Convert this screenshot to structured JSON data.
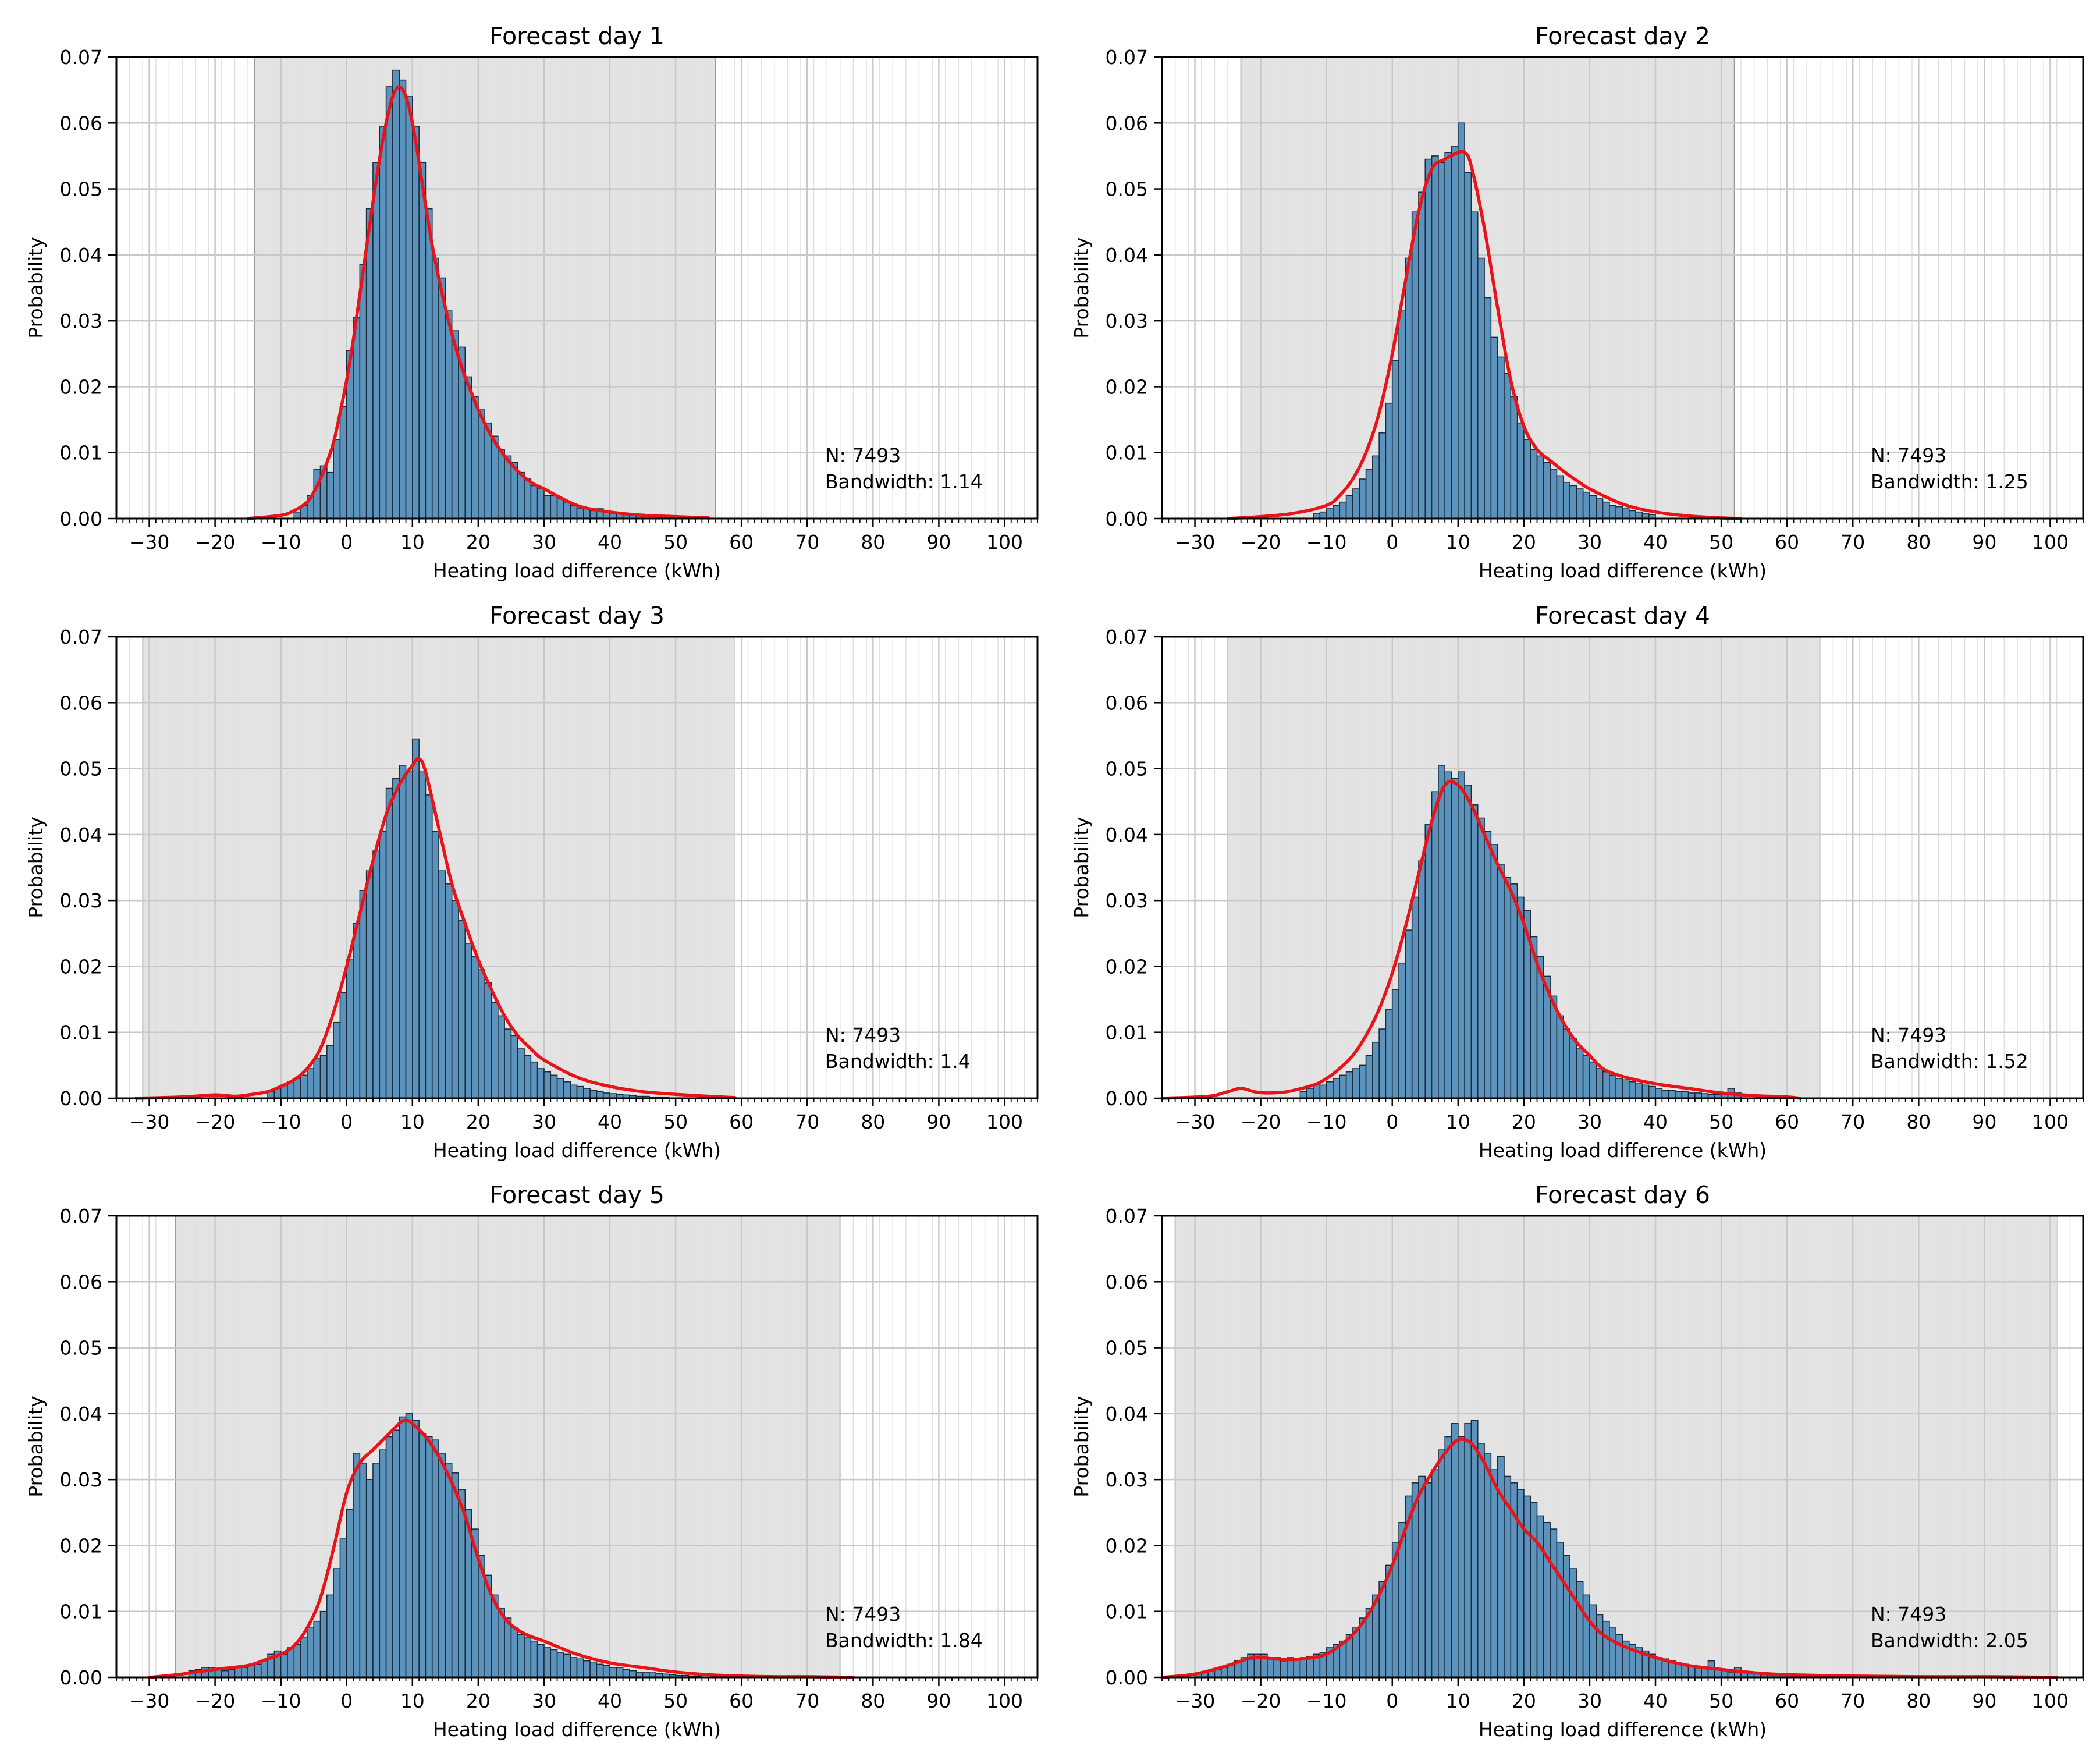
{
  "figure": {
    "xlabel": "Heating load difference (kWh)",
    "ylabel": "Probability",
    "n_label": "N: 7493",
    "bandwidth_prefix": "Bandwidth: "
  },
  "colors": {
    "bar_fill": "#5b93bd",
    "bar_edge": "#1c2a3a",
    "kde": "#e8141a",
    "shade": "#e3e3e3",
    "grid": "#c8c8c8"
  },
  "chart_data": [
    {
      "type": "bar",
      "title": "Forecast day 1",
      "xlabel": "Heating load difference (kWh)",
      "ylabel": "Probability",
      "xlim": [
        -35,
        105
      ],
      "ylim": [
        0,
        0.07
      ],
      "x_ticks": [
        -30,
        -20,
        -10,
        0,
        10,
        20,
        30,
        40,
        50,
        60,
        70,
        80,
        90,
        100
      ],
      "y_ticks": [
        0.0,
        0.01,
        0.02,
        0.03,
        0.04,
        0.05,
        0.06,
        0.07
      ],
      "shaded_range": [
        -14,
        56
      ],
      "n": 7493,
      "bandwidth": "1.14",
      "bins": {
        "start": -8.0,
        "width": 1.0,
        "values": [
          0.001,
          0.002,
          0.0035,
          0.0075,
          0.008,
          0.007,
          0.012,
          0.017,
          0.0255,
          0.0305,
          0.0385,
          0.047,
          0.054,
          0.0595,
          0.0655,
          0.068,
          0.0665,
          0.064,
          0.0595,
          0.054,
          0.047,
          0.0395,
          0.0365,
          0.0315,
          0.0285,
          0.026,
          0.0215,
          0.0185,
          0.0165,
          0.0145,
          0.0125,
          0.0105,
          0.0095,
          0.0085,
          0.007,
          0.006,
          0.005,
          0.0045,
          0.0035,
          0.0035,
          0.003,
          0.0025,
          0.002,
          0.0015,
          0.0015,
          0.0012,
          0.0015,
          0.001,
          0.0008,
          0.0007,
          0.0006,
          0.0005,
          0.0005,
          0.0004,
          0.0003,
          0.0003,
          0.0002,
          0.0002
        ]
      },
      "kde": {
        "x": [
          -15,
          -10,
          -8,
          -6,
          -5,
          -4,
          -3,
          -2,
          -1,
          0,
          1,
          2,
          3,
          4,
          5,
          6,
          7,
          8,
          9,
          10,
          11,
          12,
          13,
          14,
          15,
          16,
          17,
          18,
          19,
          20,
          22,
          24,
          26,
          28,
          30,
          35,
          40,
          45,
          50,
          55
        ],
        "y": [
          0.0,
          0.0005,
          0.0012,
          0.0025,
          0.004,
          0.006,
          0.0085,
          0.0115,
          0.016,
          0.021,
          0.027,
          0.034,
          0.041,
          0.048,
          0.0545,
          0.06,
          0.064,
          0.0655,
          0.064,
          0.06,
          0.054,
          0.0475,
          0.0415,
          0.0365,
          0.032,
          0.028,
          0.0245,
          0.0215,
          0.019,
          0.0165,
          0.0125,
          0.0095,
          0.0072,
          0.0055,
          0.0045,
          0.002,
          0.001,
          0.0005,
          0.0003,
          0.0001
        ]
      }
    },
    {
      "type": "bar",
      "title": "Forecast day 2",
      "xlabel": "Heating load difference (kWh)",
      "ylabel": "Probability",
      "xlim": [
        -35,
        105
      ],
      "ylim": [
        0,
        0.07
      ],
      "x_ticks": [
        -30,
        -20,
        -10,
        0,
        10,
        20,
        30,
        40,
        50,
        60,
        70,
        80,
        90,
        100
      ],
      "y_ticks": [
        0.0,
        0.01,
        0.02,
        0.03,
        0.04,
        0.05,
        0.06,
        0.07
      ],
      "shaded_range": [
        -23,
        52
      ],
      "n": 7493,
      "bandwidth": "1.25",
      "bins": {
        "start": -12.0,
        "width": 1.0,
        "values": [
          0.0008,
          0.001,
          0.0015,
          0.002,
          0.0025,
          0.0035,
          0.0045,
          0.006,
          0.0075,
          0.0095,
          0.013,
          0.0175,
          0.024,
          0.0315,
          0.0395,
          0.0465,
          0.0495,
          0.0545,
          0.055,
          0.054,
          0.0555,
          0.0565,
          0.06,
          0.0525,
          0.0465,
          0.0395,
          0.0335,
          0.0275,
          0.0245,
          0.022,
          0.0185,
          0.0145,
          0.012,
          0.0105,
          0.0095,
          0.0085,
          0.0075,
          0.0065,
          0.0055,
          0.005,
          0.0045,
          0.004,
          0.0035,
          0.003,
          0.0025,
          0.002,
          0.0018,
          0.0015,
          0.0012,
          0.001,
          0.0008,
          0.0006
        ]
      },
      "kde": {
        "x": [
          -25,
          -20,
          -15,
          -10,
          -8,
          -6,
          -4,
          -2,
          0,
          2,
          4,
          6,
          8,
          10,
          11,
          12,
          14,
          16,
          18,
          20,
          22,
          24,
          26,
          28,
          30,
          35,
          40,
          45,
          50,
          53
        ],
        "y": [
          0.0,
          0.0003,
          0.0008,
          0.002,
          0.0035,
          0.006,
          0.01,
          0.016,
          0.025,
          0.036,
          0.0465,
          0.053,
          0.0545,
          0.0555,
          0.0555,
          0.0535,
          0.044,
          0.032,
          0.021,
          0.014,
          0.0105,
          0.0088,
          0.0072,
          0.0058,
          0.0045,
          0.0022,
          0.001,
          0.0004,
          0.0001,
          0.0
        ]
      }
    },
    {
      "type": "bar",
      "title": "Forecast day 3",
      "xlabel": "Heating load difference (kWh)",
      "ylabel": "Probability",
      "xlim": [
        -35,
        105
      ],
      "ylim": [
        0,
        0.07
      ],
      "x_ticks": [
        -30,
        -20,
        -10,
        0,
        10,
        20,
        30,
        40,
        50,
        60,
        70,
        80,
        90,
        100
      ],
      "y_ticks": [
        0.0,
        0.01,
        0.02,
        0.03,
        0.04,
        0.05,
        0.06,
        0.07
      ],
      "shaded_range": [
        -31,
        59
      ],
      "n": 7493,
      "bandwidth": "1.4",
      "bins": {
        "start": -12.0,
        "width": 1.0,
        "values": [
          0.001,
          0.0015,
          0.002,
          0.0025,
          0.003,
          0.0035,
          0.0045,
          0.006,
          0.0065,
          0.008,
          0.0115,
          0.016,
          0.021,
          0.0265,
          0.0315,
          0.0345,
          0.0375,
          0.0405,
          0.047,
          0.0485,
          0.0505,
          0.0495,
          0.0545,
          0.0495,
          0.046,
          0.0405,
          0.0345,
          0.0325,
          0.03,
          0.027,
          0.0235,
          0.0215,
          0.0195,
          0.0175,
          0.0145,
          0.0125,
          0.0105,
          0.0095,
          0.0075,
          0.0065,
          0.0055,
          0.0045,
          0.004,
          0.0035,
          0.003,
          0.0025,
          0.002,
          0.0018,
          0.0015,
          0.0012,
          0.001,
          0.0008,
          0.0007,
          0.0006,
          0.0005,
          0.0004,
          0.0003,
          0.0003,
          0.0002,
          0.0002,
          0.0002
        ]
      },
      "kde": {
        "x": [
          -32,
          -25,
          -20,
          -17,
          -15,
          -12,
          -10,
          -8,
          -6,
          -4,
          -2,
          0,
          2,
          4,
          6,
          8,
          10,
          11,
          12,
          14,
          16,
          18,
          20,
          22,
          24,
          26,
          28,
          30,
          35,
          40,
          45,
          50,
          55,
          59
        ],
        "y": [
          0.0,
          0.0002,
          0.0005,
          0.0003,
          0.0005,
          0.001,
          0.0018,
          0.0028,
          0.0045,
          0.0075,
          0.013,
          0.02,
          0.028,
          0.036,
          0.043,
          0.0475,
          0.0505,
          0.0515,
          0.0495,
          0.041,
          0.0325,
          0.0265,
          0.021,
          0.0165,
          0.0125,
          0.0095,
          0.0075,
          0.0058,
          0.0032,
          0.0018,
          0.001,
          0.0006,
          0.0003,
          0.0001
        ]
      }
    },
    {
      "type": "bar",
      "title": "Forecast day 4",
      "xlabel": "Heating load difference (kWh)",
      "ylabel": "Probability",
      "xlim": [
        -35,
        105
      ],
      "ylim": [
        0,
        0.07
      ],
      "x_ticks": [
        -30,
        -20,
        -10,
        0,
        10,
        20,
        30,
        40,
        50,
        60,
        70,
        80,
        90,
        100
      ],
      "y_ticks": [
        0.0,
        0.01,
        0.02,
        0.03,
        0.04,
        0.05,
        0.06,
        0.07
      ],
      "shaded_range": [
        -25,
        65
      ],
      "n": 7493,
      "bandwidth": "1.52",
      "bins": {
        "start": -14.0,
        "width": 1.0,
        "values": [
          0.001,
          0.0015,
          0.002,
          0.002,
          0.0025,
          0.003,
          0.0035,
          0.004,
          0.0045,
          0.005,
          0.0065,
          0.0085,
          0.0105,
          0.0135,
          0.0165,
          0.0205,
          0.0255,
          0.0305,
          0.036,
          0.0415,
          0.0465,
          0.0505,
          0.0495,
          0.0485,
          0.0495,
          0.0475,
          0.0445,
          0.0425,
          0.0405,
          0.0385,
          0.0355,
          0.0335,
          0.0325,
          0.0305,
          0.0285,
          0.0245,
          0.0215,
          0.0185,
          0.0155,
          0.0125,
          0.0105,
          0.009,
          0.0075,
          0.0065,
          0.0055,
          0.0045,
          0.004,
          0.0035,
          0.003,
          0.0028,
          0.0025,
          0.0022,
          0.002,
          0.0018,
          0.0015,
          0.0012,
          0.0012,
          0.001,
          0.001,
          0.0008,
          0.0008,
          0.0007,
          0.0006,
          0.0006,
          0.0008,
          0.0015,
          0.0008
        ]
      },
      "kde": {
        "x": [
          -35,
          -28,
          -25,
          -23,
          -21,
          -19,
          -16,
          -12,
          -10,
          -8,
          -6,
          -4,
          -2,
          0,
          2,
          4,
          6,
          8,
          10,
          12,
          14,
          16,
          18,
          20,
          22,
          24,
          26,
          28,
          30,
          32,
          35,
          40,
          45,
          50,
          55,
          60,
          62
        ],
        "y": [
          0.0,
          0.0003,
          0.001,
          0.0015,
          0.001,
          0.0008,
          0.001,
          0.002,
          0.003,
          0.0045,
          0.0065,
          0.0095,
          0.0135,
          0.019,
          0.026,
          0.034,
          0.042,
          0.0475,
          0.0475,
          0.0445,
          0.04,
          0.0355,
          0.0315,
          0.0265,
          0.0205,
          0.0155,
          0.0115,
          0.0085,
          0.0065,
          0.0045,
          0.0033,
          0.0022,
          0.0015,
          0.0008,
          0.0004,
          0.0002,
          0.0
        ]
      }
    },
    {
      "type": "bar",
      "title": "Forecast day 5",
      "xlabel": "Heating load difference (kWh)",
      "ylabel": "Probability",
      "xlim": [
        -35,
        105
      ],
      "ylim": [
        0,
        0.07
      ],
      "x_ticks": [
        -30,
        -20,
        -10,
        0,
        10,
        20,
        30,
        40,
        50,
        60,
        70,
        80,
        90,
        100
      ],
      "y_ticks": [
        0.0,
        0.01,
        0.02,
        0.03,
        0.04,
        0.05,
        0.06,
        0.07
      ],
      "shaded_range": [
        -26,
        75
      ],
      "n": 7493,
      "bandwidth": "1.84",
      "bins": {
        "start": -24.0,
        "width": 1.0,
        "values": [
          0.001,
          0.0012,
          0.0015,
          0.0015,
          0.0012,
          0.001,
          0.0012,
          0.0015,
          0.0015,
          0.0018,
          0.002,
          0.0025,
          0.0035,
          0.004,
          0.0035,
          0.0045,
          0.005,
          0.006,
          0.0075,
          0.0085,
          0.01,
          0.0125,
          0.0165,
          0.021,
          0.0255,
          0.034,
          0.0325,
          0.03,
          0.0325,
          0.0345,
          0.0365,
          0.0375,
          0.0395,
          0.04,
          0.039,
          0.037,
          0.0365,
          0.036,
          0.034,
          0.0325,
          0.031,
          0.0285,
          0.0255,
          0.0225,
          0.0185,
          0.0155,
          0.0125,
          0.0105,
          0.009,
          0.0075,
          0.0065,
          0.006,
          0.0055,
          0.005,
          0.0045,
          0.0042,
          0.0038,
          0.0035,
          0.003,
          0.0028,
          0.0025,
          0.0022,
          0.002,
          0.0018,
          0.0015,
          0.0015,
          0.0012,
          0.001,
          0.0008,
          0.0008,
          0.0007,
          0.0006,
          0.0005,
          0.0004,
          0.0003,
          0.0003,
          0.0002,
          0.0002
        ]
      },
      "kde": {
        "x": [
          -30,
          -25,
          -20,
          -15,
          -12,
          -10,
          -8,
          -6,
          -4,
          -2,
          0,
          2,
          4,
          6,
          8,
          9,
          10,
          12,
          14,
          16,
          18,
          20,
          22,
          24,
          26,
          28,
          30,
          35,
          40,
          45,
          50,
          55,
          60,
          65,
          70,
          77
        ],
        "y": [
          0.0,
          0.0005,
          0.0012,
          0.0018,
          0.0028,
          0.0035,
          0.0048,
          0.0075,
          0.012,
          0.0195,
          0.028,
          0.0325,
          0.0345,
          0.0365,
          0.0385,
          0.039,
          0.0385,
          0.0365,
          0.0335,
          0.0295,
          0.0245,
          0.018,
          0.0125,
          0.009,
          0.0072,
          0.0062,
          0.0055,
          0.0035,
          0.0022,
          0.0015,
          0.0008,
          0.0004,
          0.0002,
          0.0001,
          0.0001,
          0.0
        ]
      }
    },
    {
      "type": "bar",
      "title": "Forecast day 6",
      "xlabel": "Heating load difference (kWh)",
      "ylabel": "Probability",
      "xlim": [
        -35,
        105
      ],
      "ylim": [
        0,
        0.07
      ],
      "x_ticks": [
        -30,
        -20,
        -10,
        0,
        10,
        20,
        30,
        40,
        50,
        60,
        70,
        80,
        90,
        100
      ],
      "y_ticks": [
        0.0,
        0.01,
        0.02,
        0.03,
        0.04,
        0.05,
        0.06,
        0.07
      ],
      "shaded_range": [
        -33,
        101
      ],
      "n": 7493,
      "bandwidth": "2.05",
      "bins": {
        "start": -30.0,
        "width": 1.0,
        "values": [
          0.0005,
          0.0008,
          0.001,
          0.0012,
          0.0015,
          0.002,
          0.0025,
          0.003,
          0.0035,
          0.0035,
          0.0035,
          0.003,
          0.003,
          0.0025,
          0.003,
          0.0028,
          0.003,
          0.0032,
          0.0035,
          0.0038,
          0.0045,
          0.005,
          0.0055,
          0.0065,
          0.0075,
          0.009,
          0.0105,
          0.0125,
          0.0145,
          0.017,
          0.0205,
          0.0235,
          0.0275,
          0.0295,
          0.0305,
          0.0295,
          0.0315,
          0.0345,
          0.0365,
          0.0385,
          0.0365,
          0.0385,
          0.039,
          0.0355,
          0.034,
          0.0315,
          0.0335,
          0.0305,
          0.0295,
          0.0285,
          0.0275,
          0.0265,
          0.0245,
          0.0235,
          0.0225,
          0.0205,
          0.0185,
          0.0165,
          0.0145,
          0.0125,
          0.011,
          0.0095,
          0.0085,
          0.0075,
          0.0065,
          0.0055,
          0.005,
          0.0045,
          0.004,
          0.0035,
          0.003,
          0.0028,
          0.0025,
          0.0022,
          0.002,
          0.0018,
          0.0016,
          0.0014,
          0.0025,
          0.0012,
          0.001,
          0.0008,
          0.0015,
          0.0007,
          0.0006,
          0.0005,
          0.0004,
          0.0004,
          0.0003,
          0.0003,
          0.0003,
          0.0002,
          0.0002,
          0.0002,
          0.0002,
          0.0002,
          0.0003
        ]
      },
      "kde": {
        "x": [
          -35,
          -30,
          -25,
          -22,
          -20,
          -18,
          -15,
          -12,
          -10,
          -8,
          -6,
          -4,
          -2,
          0,
          2,
          4,
          6,
          8,
          10,
          12,
          14,
          16,
          18,
          20,
          22,
          24,
          26,
          28,
          30,
          32,
          35,
          40,
          45,
          50,
          55,
          60,
          70,
          80,
          90,
          101
        ],
        "y": [
          0.0,
          0.0005,
          0.0018,
          0.0028,
          0.003,
          0.0028,
          0.0027,
          0.003,
          0.0035,
          0.0048,
          0.0065,
          0.009,
          0.0125,
          0.017,
          0.0225,
          0.0275,
          0.031,
          0.034,
          0.036,
          0.0355,
          0.0325,
          0.0285,
          0.0255,
          0.0225,
          0.0205,
          0.0175,
          0.0145,
          0.0115,
          0.0085,
          0.0065,
          0.0048,
          0.003,
          0.0018,
          0.0012,
          0.0007,
          0.0004,
          0.0002,
          0.0001,
          0.0001,
          0.0
        ]
      }
    }
  ]
}
